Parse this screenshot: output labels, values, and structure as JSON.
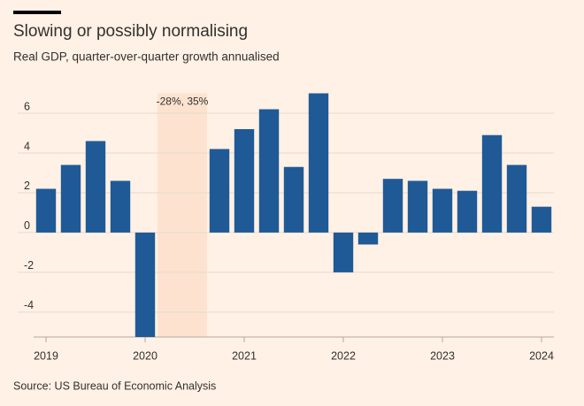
{
  "chart_data": {
    "type": "bar",
    "title": "Slowing or possibly normalising",
    "subtitle": "Real GDP, quarter-over-quarter growth annualised",
    "source": "Source: US Bureau of Economic Analysis",
    "annotation": "-28%, 35%",
    "categories": [
      "2019",
      null,
      null,
      null,
      "2020",
      null,
      null,
      null,
      "2021",
      null,
      null,
      null,
      "2022",
      null,
      null,
      null,
      "2023",
      null,
      null,
      null,
      "2024"
    ],
    "values": [
      2.2,
      3.4,
      4.6,
      2.6,
      -5.3,
      null,
      null,
      4.2,
      5.2,
      6.2,
      3.3,
      7.0,
      -2.0,
      -0.6,
      2.7,
      2.6,
      2.2,
      2.1,
      4.9,
      3.4,
      1.3
    ],
    "color": "#1f5a96",
    "ylim": [
      -5.25,
      7
    ],
    "yticks": [
      -4,
      -2,
      0,
      2,
      4,
      6
    ],
    "grid": true
  }
}
